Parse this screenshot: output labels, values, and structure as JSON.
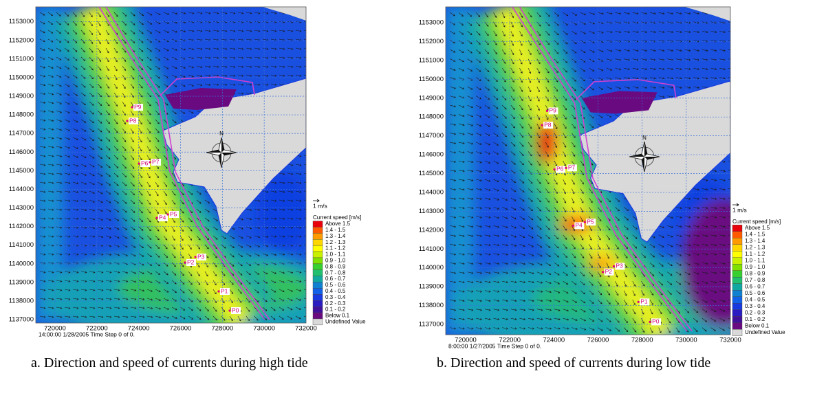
{
  "panels": [
    {
      "caption": "a. Direction and speed of currents during high tide",
      "timestamp": "14:00:00 1/28/2005  Time Step 0 of 0.",
      "xlim": [
        719080,
        732000
      ],
      "ylim": [
        1136815,
        1153800
      ],
      "xticks": [
        720000,
        722000,
        724000,
        726000,
        728000,
        730000,
        732000
      ],
      "yticks": [
        1137000,
        1138000,
        1139000,
        1140000,
        1141000,
        1142000,
        1143000,
        1144000,
        1145000,
        1146000,
        1147000,
        1148000,
        1149000,
        1150000,
        1151000,
        1152000,
        1153000
      ],
      "points": [
        "P0",
        "P1",
        "P2",
        "P3",
        "P4",
        "P5",
        "P6",
        "P7",
        "P8",
        "P9"
      ],
      "north": "N",
      "legend": {
        "scale_label": "1 m/s",
        "title": "Current speed [m/s]",
        "entries": [
          {
            "label": "Above 1.5",
            "color": "#e8000b"
          },
          {
            "label": "1.4 - 1.5",
            "color": "#ff5a00"
          },
          {
            "label": "1.3 - 1.4",
            "color": "#ff9900"
          },
          {
            "label": "1.2 - 1.3",
            "color": "#ffd700"
          },
          {
            "label": "1.1 - 1.2",
            "color": "#ffff00"
          },
          {
            "label": "1.0 - 1.1",
            "color": "#c8f000"
          },
          {
            "label": "0.9 - 1.0",
            "color": "#80e000"
          },
          {
            "label": "0.8 - 0.9",
            "color": "#38d030"
          },
          {
            "label": "0.7 - 0.8",
            "color": "#20c070"
          },
          {
            "label": "0.6 - 0.7",
            "color": "#10a8a0"
          },
          {
            "label": "0.5 - 0.6",
            "color": "#1080d0"
          },
          {
            "label": "0.4 - 0.5",
            "color": "#1060e8"
          },
          {
            "label": "0.3 - 0.4",
            "color": "#1838e0"
          },
          {
            "label": "0.2 - 0.3",
            "color": "#2a1cc0"
          },
          {
            "label": "0.1 - 0.2",
            "color": "#40109a"
          },
          {
            "label": "Below 0.1",
            "color": "#6a0a80"
          },
          {
            "label": "Undefined Value",
            "color": "#d9d9d9"
          }
        ]
      }
    },
    {
      "caption": "b. Direction and speed of currents during low tide",
      "timestamp": "8:00:00 1/27/2005  Time Step 0 of 0.",
      "xlim": [
        719096,
        732000
      ],
      "ylim": [
        1136453,
        1153838
      ],
      "xticks": [
        720000,
        722000,
        724000,
        726000,
        728000,
        730000,
        732000
      ],
      "yticks": [
        1137000,
        1138000,
        1139000,
        1140000,
        1141000,
        1142000,
        1143000,
        1144000,
        1145000,
        1146000,
        1147000,
        1148000,
        1149000,
        1150000,
        1151000,
        1152000,
        1153000
      ],
      "points": [
        "P0",
        "P1",
        "P2",
        "P3",
        "P4",
        "P5",
        "P6",
        "P7",
        "P8",
        "P9"
      ],
      "north": "N",
      "legend": {
        "scale_label": "1 m/s",
        "title": "Current speed [m/s]",
        "entries": [
          {
            "label": "Above 1.5",
            "color": "#e8000b"
          },
          {
            "label": "1.4 - 1.5",
            "color": "#ff5a00"
          },
          {
            "label": "1.3 - 1.4",
            "color": "#ff9900"
          },
          {
            "label": "1.2 - 1.3",
            "color": "#ffd700"
          },
          {
            "label": "1.1 - 1.2",
            "color": "#ffff00"
          },
          {
            "label": "1.0 - 1.1",
            "color": "#c8f000"
          },
          {
            "label": "0.9 - 1.0",
            "color": "#80e000"
          },
          {
            "label": "0.8 - 0.9",
            "color": "#38d030"
          },
          {
            "label": "0.7 - 0.8",
            "color": "#20c070"
          },
          {
            "label": "0.6 - 0.7",
            "color": "#10a8a0"
          },
          {
            "label": "0.5 - 0.6",
            "color": "#1080d0"
          },
          {
            "label": "0.4 - 0.5",
            "color": "#1060e8"
          },
          {
            "label": "0.3 - 0.4",
            "color": "#1838e0"
          },
          {
            "label": "0.2 - 0.3",
            "color": "#2a1cc0"
          },
          {
            "label": "0.1 - 0.2",
            "color": "#40109a"
          },
          {
            "label": "Below 0.1",
            "color": "#6a0a80"
          },
          {
            "label": "Undefined Value",
            "color": "#d9d9d9"
          }
        ]
      }
    }
  ]
}
